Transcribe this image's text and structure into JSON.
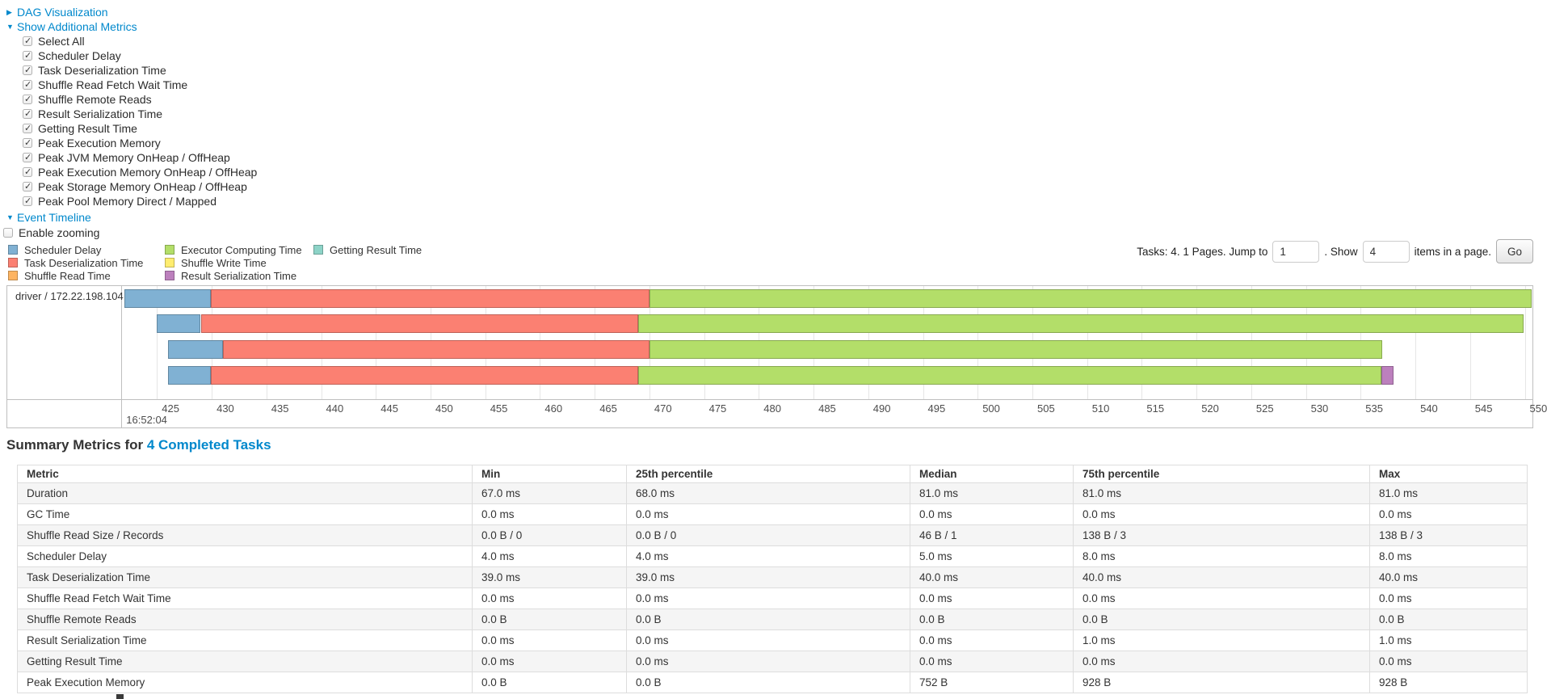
{
  "colors": {
    "link": "#0088cc",
    "grid": "#e6e6e6",
    "chart_border": "#bfbfbf",
    "stripe_row": "#f5f5f5"
  },
  "toggles": {
    "dag": {
      "label": "DAG Visualization",
      "collapsed": true
    },
    "additional_metrics": {
      "label": "Show Additional Metrics",
      "collapsed": false
    },
    "event_timeline": {
      "label": "Event Timeline",
      "collapsed": false
    }
  },
  "metric_checkboxes": [
    {
      "label": "Select All",
      "checked": true
    },
    {
      "label": "Scheduler Delay",
      "checked": true
    },
    {
      "label": "Task Deserialization Time",
      "checked": true
    },
    {
      "label": "Shuffle Read Fetch Wait Time",
      "checked": true
    },
    {
      "label": "Shuffle Remote Reads",
      "checked": true
    },
    {
      "label": "Result Serialization Time",
      "checked": true
    },
    {
      "label": "Getting Result Time",
      "checked": true
    },
    {
      "label": "Peak Execution Memory",
      "checked": true
    },
    {
      "label": "Peak JVM Memory OnHeap / OffHeap",
      "checked": true
    },
    {
      "label": "Peak Execution Memory OnHeap / OffHeap",
      "checked": true
    },
    {
      "label": "Peak Storage Memory OnHeap / OffHeap",
      "checked": true
    },
    {
      "label": "Peak Pool Memory Direct / Mapped",
      "checked": true
    }
  ],
  "enable_zooming": {
    "label": "Enable zooming",
    "checked": false
  },
  "pagination": {
    "tasks_text": "Tasks: 4. 1 Pages. Jump to",
    "jump_value": "1",
    "show_text": ". Show",
    "show_value": "4",
    "items_text": "items in a page.",
    "go_label": "Go"
  },
  "legend": {
    "columns": [
      [
        {
          "label": "Scheduler Delay",
          "color": "#80B1D3"
        },
        {
          "label": "Task Deserialization Time",
          "color": "#FB8072"
        },
        {
          "label": "Shuffle Read Time",
          "color": "#FDB462"
        }
      ],
      [
        {
          "label": "Executor Computing Time",
          "color": "#B3DE69"
        },
        {
          "label": "Shuffle Write Time",
          "color": "#FFED6F"
        },
        {
          "label": "Result Serialization Time",
          "color": "#BC80BD"
        }
      ],
      [
        {
          "label": "Getting Result Time",
          "color": "#8DD3C7"
        }
      ]
    ]
  },
  "chart_data": {
    "type": "timeline",
    "title": "Event Timeline",
    "group_label": "driver / 172.22.198.104",
    "x_axis": {
      "unit": "milliseconds within second 16:52:04",
      "major_label": "16:52:04",
      "tick_start": 425,
      "tick_end": 550,
      "tick_step": 5,
      "view_start": 421.8,
      "view_end": 550.7,
      "grid": true
    },
    "series_colors": {
      "scheduler_delay": "#80B1D3",
      "task_deserialization": "#FB8072",
      "shuffle_read": "#FDB462",
      "executor_computing": "#B3DE69",
      "shuffle_write": "#FFED6F",
      "result_serialization": "#BC80BD",
      "getting_result": "#8DD3C7"
    },
    "tasks": [
      {
        "segments": [
          {
            "type": "scheduler_delay",
            "start": 422.0,
            "end": 429.9
          },
          {
            "type": "task_deserialization",
            "start": 429.9,
            "end": 470.0
          },
          {
            "type": "executor_computing",
            "start": 470.0,
            "end": 550.6
          }
        ]
      },
      {
        "segments": [
          {
            "type": "scheduler_delay",
            "start": 425.0,
            "end": 429.0
          },
          {
            "type": "task_deserialization",
            "start": 429.0,
            "end": 469.0
          },
          {
            "type": "executor_computing",
            "start": 469.0,
            "end": 549.9
          }
        ]
      },
      {
        "segments": [
          {
            "type": "scheduler_delay",
            "start": 426.0,
            "end": 431.0
          },
          {
            "type": "task_deserialization",
            "start": 431.0,
            "end": 470.0
          },
          {
            "type": "executor_computing",
            "start": 470.0,
            "end": 537.0
          }
        ]
      },
      {
        "segments": [
          {
            "type": "scheduler_delay",
            "start": 426.0,
            "end": 429.9
          },
          {
            "type": "task_deserialization",
            "start": 429.9,
            "end": 469.0
          },
          {
            "type": "executor_computing",
            "start": 469.0,
            "end": 536.9
          },
          {
            "type": "result_serialization",
            "start": 536.9,
            "end": 538.0
          }
        ]
      }
    ]
  },
  "summary": {
    "heading_prefix": "Summary Metrics for ",
    "heading_link": "4 Completed Tasks",
    "table": {
      "headers": [
        "Metric",
        "Min",
        "25th percentile",
        "Median",
        "75th percentile",
        "Max"
      ],
      "rows": [
        [
          "Duration",
          "67.0 ms",
          "68.0 ms",
          "81.0 ms",
          "81.0 ms",
          "81.0 ms"
        ],
        [
          "GC Time",
          "0.0 ms",
          "0.0 ms",
          "0.0 ms",
          "0.0 ms",
          "0.0 ms"
        ],
        [
          "Shuffle Read Size / Records",
          "0.0 B / 0",
          "0.0 B / 0",
          "46 B / 1",
          "138 B / 3",
          "138 B / 3"
        ],
        [
          "Scheduler Delay",
          "4.0 ms",
          "4.0 ms",
          "5.0 ms",
          "8.0 ms",
          "8.0 ms"
        ],
        [
          "Task Deserialization Time",
          "39.0 ms",
          "39.0 ms",
          "40.0 ms",
          "40.0 ms",
          "40.0 ms"
        ],
        [
          "Shuffle Read Fetch Wait Time",
          "0.0 ms",
          "0.0 ms",
          "0.0 ms",
          "0.0 ms",
          "0.0 ms"
        ],
        [
          "Shuffle Remote Reads",
          "0.0 B",
          "0.0 B",
          "0.0 B",
          "0.0 B",
          "0.0 B"
        ],
        [
          "Result Serialization Time",
          "0.0 ms",
          "0.0 ms",
          "0.0 ms",
          "1.0 ms",
          "1.0 ms"
        ],
        [
          "Getting Result Time",
          "0.0 ms",
          "0.0 ms",
          "0.0 ms",
          "0.0 ms",
          "0.0 ms"
        ],
        [
          "Peak Execution Memory",
          "0.0 B",
          "0.0 B",
          "752 B",
          "928 B",
          "928 B"
        ]
      ]
    }
  }
}
